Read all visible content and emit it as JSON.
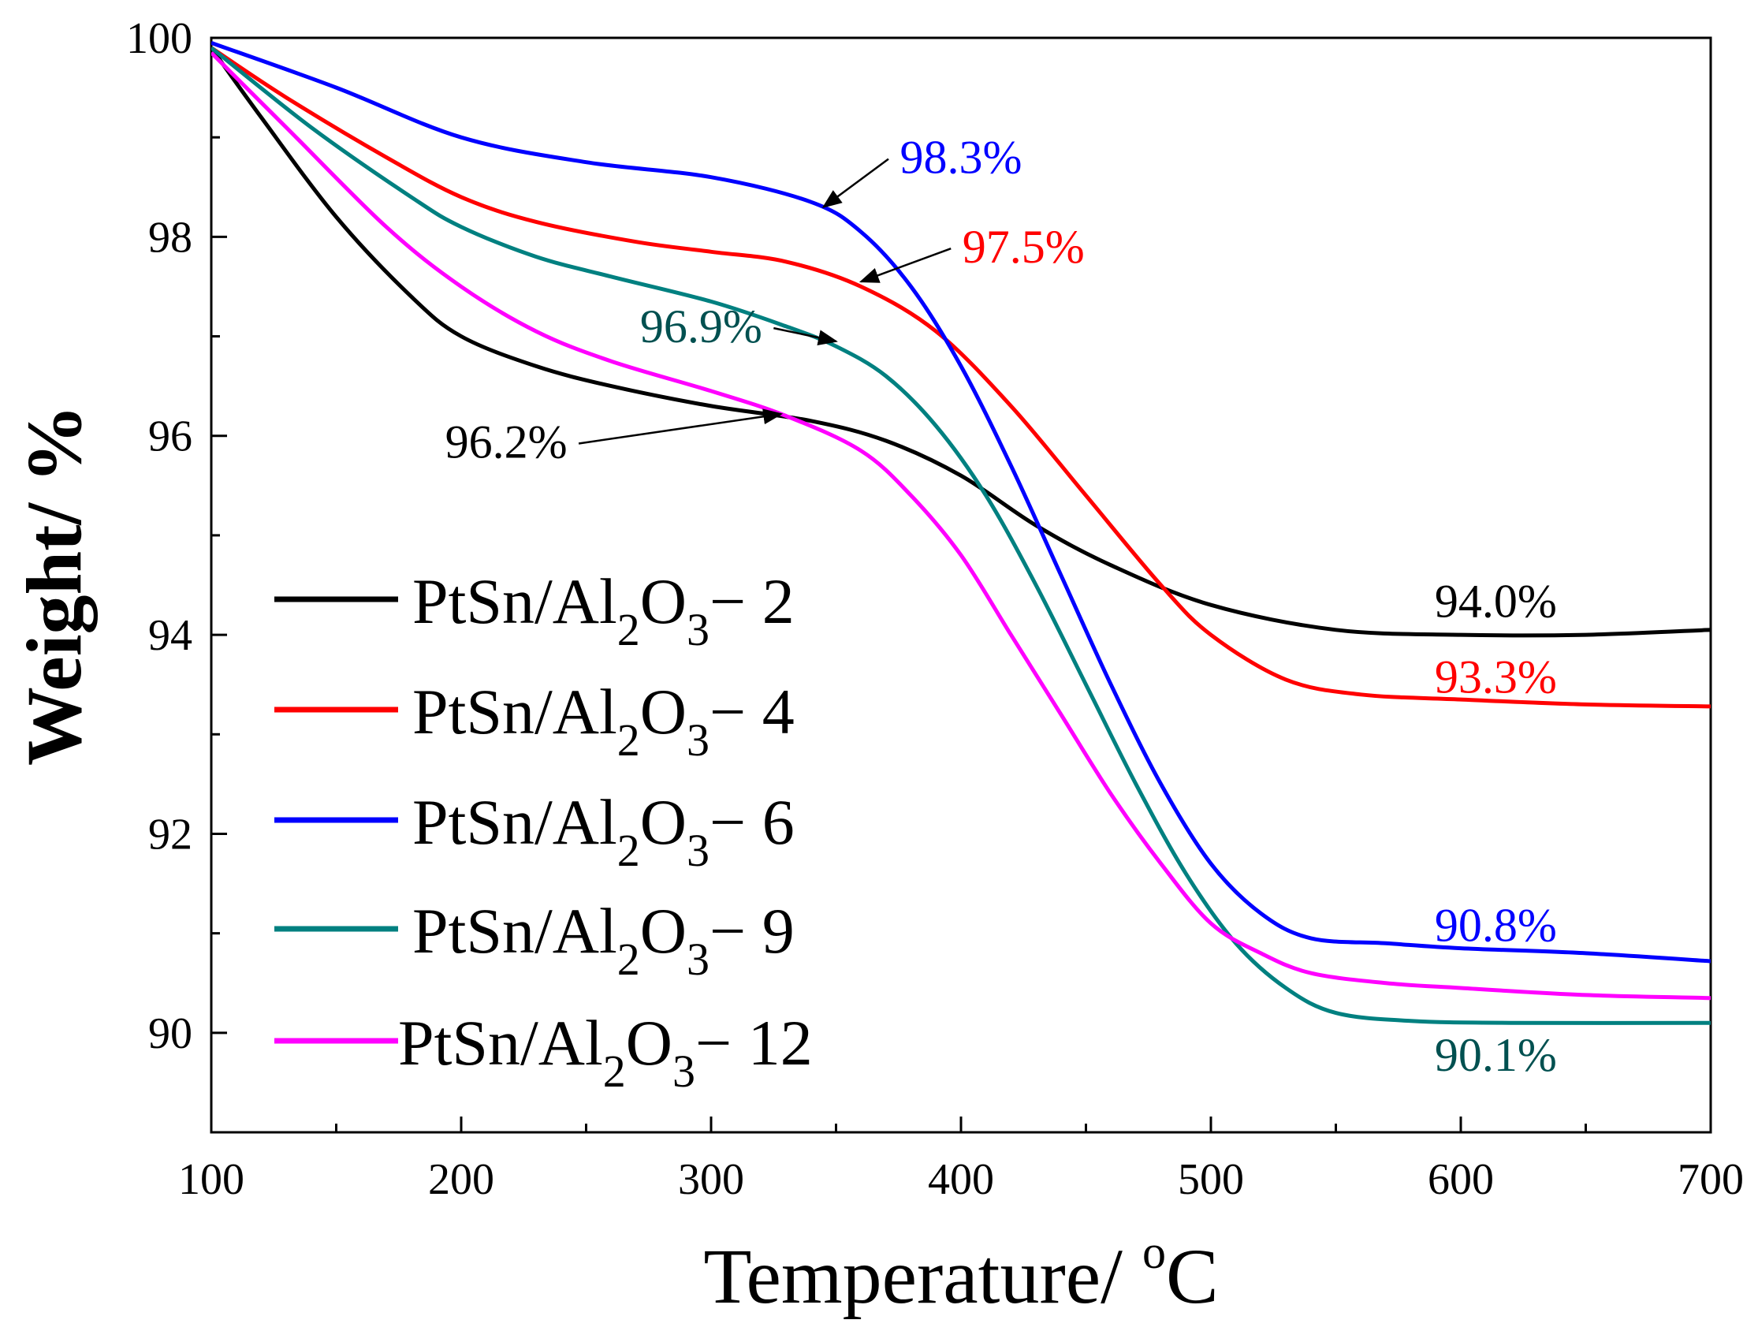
{
  "chart_data": {
    "type": "line",
    "title": "",
    "xlabel": "Temperature/ ",
    "xlabel_sup": "o",
    "xlabel_unit": "C",
    "ylabel": "Weight/ %",
    "xlim": [
      100,
      700
    ],
    "ylim": [
      89,
      100
    ],
    "xticks": [
      100,
      200,
      300,
      400,
      500,
      600,
      700
    ],
    "xtick_labels": [
      "100",
      "200",
      "300",
      "400",
      "500",
      "600",
      "700"
    ],
    "yticks": [
      90,
      92,
      94,
      96,
      98,
      100
    ],
    "ytick_labels": [
      "90",
      "92",
      "94",
      "96",
      "98",
      "100"
    ],
    "grid": false,
    "legend_position": "bottom-left",
    "series": [
      {
        "name": "PtSn/Al2O3−2",
        "legend": {
          "base": "PtSn/Al",
          "sub1": "2",
          "mid": "O",
          "sub2": "3",
          "suffix": "− 2"
        },
        "color": "#000000",
        "x": [
          100,
          120,
          150,
          180,
          200,
          230,
          260,
          300,
          340,
          370,
          400,
          430,
          460,
          500,
          550,
          600,
          650,
          700
        ],
        "y": [
          99.9,
          99.2,
          98.2,
          97.4,
          97.0,
          96.7,
          96.5,
          96.3,
          96.15,
          95.95,
          95.6,
          95.1,
          94.7,
          94.3,
          94.05,
          94.0,
          94.0,
          94.05
        ]
      },
      {
        "name": "PtSn/Al2O3−4",
        "legend": {
          "base": "PtSn/Al",
          "sub1": "2",
          "mid": "O",
          "sub2": "3",
          "suffix": "− 4"
        },
        "color": "#ff0000",
        "x": [
          100,
          130,
          170,
          200,
          230,
          270,
          300,
          330,
          360,
          390,
          420,
          450,
          480,
          500,
          530,
          560,
          600,
          650,
          700
        ],
        "y": [
          99.9,
          99.4,
          98.8,
          98.4,
          98.15,
          97.95,
          97.85,
          97.75,
          97.5,
          97.05,
          96.3,
          95.4,
          94.5,
          94.0,
          93.55,
          93.4,
          93.35,
          93.3,
          93.28
        ]
      },
      {
        "name": "PtSn/Al2O3−6",
        "legend": {
          "base": "PtSn/Al",
          "sub1": "2",
          "mid": "O",
          "sub2": "3",
          "suffix": "− 6"
        },
        "color": "#0000ff",
        "x": [
          100,
          150,
          200,
          250,
          300,
          340,
          360,
          380,
          400,
          420,
          440,
          460,
          480,
          500,
          520,
          540,
          570,
          600,
          650,
          700
        ],
        "y": [
          99.95,
          99.5,
          99.0,
          98.75,
          98.6,
          98.35,
          98.05,
          97.5,
          96.7,
          95.7,
          94.6,
          93.5,
          92.5,
          91.7,
          91.2,
          90.95,
          90.9,
          90.85,
          90.8,
          90.72
        ]
      },
      {
        "name": "PtSn/Al2O3−9",
        "legend": {
          "base": "PtSn/Al",
          "sub1": "2",
          "mid": "O",
          "sub2": "3",
          "suffix": "− 9"
        },
        "color": "#008080",
        "x": [
          100,
          140,
          180,
          200,
          230,
          260,
          300,
          330,
          350,
          370,
          390,
          410,
          430,
          450,
          470,
          490,
          510,
          530,
          550,
          580,
          620,
          700
        ],
        "y": [
          99.9,
          99.1,
          98.4,
          98.1,
          97.8,
          97.6,
          97.35,
          97.1,
          96.9,
          96.6,
          96.1,
          95.4,
          94.5,
          93.5,
          92.5,
          91.6,
          90.9,
          90.45,
          90.2,
          90.12,
          90.1,
          90.1
        ]
      },
      {
        "name": "PtSn/Al2O3−12",
        "legend": {
          "base": "PtSn/Al",
          "sub1": "2",
          "mid": "O",
          "sub2": "3",
          "suffix": "− 12"
        },
        "color": "#ff00ff",
        "x": [
          100,
          130,
          170,
          200,
          230,
          260,
          300,
          330,
          360,
          380,
          400,
          420,
          440,
          460,
          480,
          500,
          520,
          540,
          570,
          600,
          650,
          700
        ],
        "y": [
          99.85,
          99.1,
          98.1,
          97.5,
          97.05,
          96.75,
          96.45,
          96.2,
          95.85,
          95.4,
          94.8,
          94.0,
          93.2,
          92.4,
          91.7,
          91.1,
          90.8,
          90.6,
          90.5,
          90.45,
          90.38,
          90.35
        ]
      }
    ],
    "annotations": [
      {
        "text": "98.3%",
        "series": 2,
        "at": [
          345,
          98.3
        ],
        "label_at": [
          400,
          98.64
        ],
        "anchor": "middle",
        "color": "#0000ff",
        "arrow": true
      },
      {
        "text": "97.5%",
        "series": 1,
        "at": [
          360,
          97.55
        ],
        "label_at": [
          425,
          97.74
        ],
        "anchor": "middle",
        "color": "#ff0000",
        "arrow": true
      },
      {
        "text": "96.9%",
        "series": 3,
        "at": [
          350,
          96.95
        ],
        "label_at": [
          296,
          96.94
        ],
        "anchor": "middle",
        "color": "#005050",
        "arrow": true
      },
      {
        "text": "96.2%",
        "series": 0,
        "at": [
          328,
          96.22
        ],
        "label_at": [
          218,
          95.78
        ],
        "anchor": "middle",
        "color": "#000000",
        "arrow": true
      },
      {
        "text": "94.0%",
        "series": 0,
        "at": null,
        "label_at": [
          614,
          94.18
        ],
        "anchor": "middle",
        "color": "#000000",
        "arrow": false
      },
      {
        "text": "93.3%",
        "series": 1,
        "at": null,
        "label_at": [
          614,
          93.42
        ],
        "anchor": "middle",
        "color": "#ff0000",
        "arrow": false
      },
      {
        "text": "90.8%",
        "series": 2,
        "at": null,
        "label_at": [
          614,
          90.92
        ],
        "anchor": "middle",
        "color": "#0000ff",
        "arrow": false
      },
      {
        "text": "90.1%",
        "series": 3,
        "at": null,
        "label_at": [
          614,
          89.62
        ],
        "anchor": "middle",
        "color": "#005050",
        "arrow": false
      }
    ]
  }
}
